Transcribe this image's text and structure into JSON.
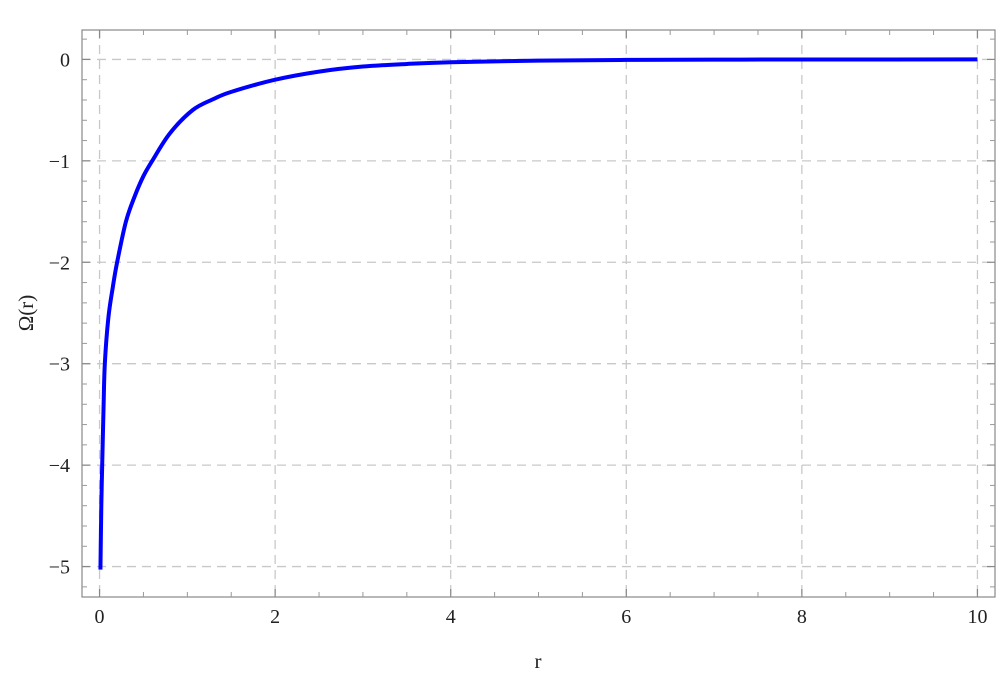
{
  "chart_data": {
    "type": "line",
    "title": "",
    "xlabel": "r",
    "ylabel": "Ω(r)",
    "xlim": [
      -0.2,
      10.2
    ],
    "ylim": [
      -5.3,
      0.29
    ],
    "x_ticks": [
      0,
      2,
      4,
      6,
      8,
      10
    ],
    "x_tick_labels": [
      "0",
      "2",
      "4",
      "6",
      "8",
      "10"
    ],
    "y_ticks": [
      0,
      -1,
      -2,
      -3,
      -4,
      -5
    ],
    "y_tick_labels": [
      "0",
      "−1",
      "−2",
      "−3",
      "−4",
      "−5"
    ],
    "grid": true,
    "grid_style": "dashed",
    "line_color": "#0000ff",
    "series": [
      {
        "x": [
          0.01,
          0.02,
          0.03,
          0.045,
          0.06,
          0.1,
          0.15,
          0.2,
          0.3,
          0.4,
          0.5,
          0.6,
          0.8,
          1.06,
          1.3,
          1.5,
          2,
          2.5,
          3,
          3.5,
          4,
          5,
          6,
          7,
          8,
          10
        ],
        "y": [
          -5.03,
          -4.4,
          -4.0,
          -3.45,
          -3.0,
          -2.55,
          -2.25,
          -2.0,
          -1.6,
          -1.35,
          -1.15,
          -1.0,
          -0.73,
          -0.5,
          -0.39,
          -0.32,
          -0.2,
          -0.12,
          -0.07,
          -0.045,
          -0.028,
          -0.012,
          -0.005,
          -0.002,
          -0.001,
          0
        ]
      }
    ]
  }
}
